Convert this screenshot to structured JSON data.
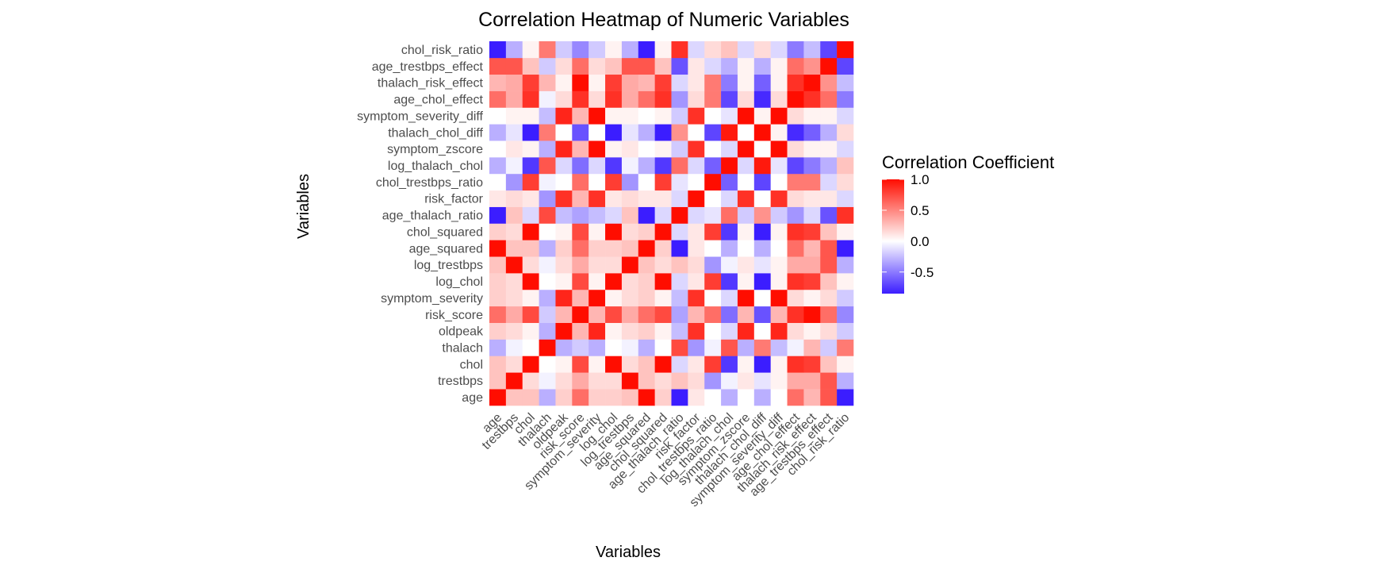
{
  "chart_data": {
    "type": "heatmap",
    "title": "Correlation Heatmap of Numeric Variables",
    "xlabel": "Variables",
    "ylabel": "Variables",
    "variables": [
      "age",
      "trestbps",
      "chol",
      "thalach",
      "oldpeak",
      "risk_score",
      "symptom_severity",
      "log_chol",
      "log_trestbps",
      "age_squared",
      "chol_squared",
      "age_thalach_ratio",
      "risk_factor",
      "chol_trestbps_ratio",
      "log_thalach_chol",
      "symptom_zscore",
      "thalach_chol_diff",
      "symptom_severity_diff",
      "age_chol_effect",
      "thalach_risk_effect",
      "age_trestbps_effect",
      "chol_risk_ratio"
    ],
    "x_categories": [
      "age",
      "trestbps",
      "chol",
      "thalach",
      "oldpeak",
      "risk_score",
      "symptom_severity",
      "log_chol",
      "log_trestbps",
      "age_squared",
      "chol_squared",
      "age_thalach_ratio",
      "risk_factor",
      "chol_trestbps_ratio",
      "log_thalach_chol",
      "symptom_zscore",
      "thalach_chol_diff",
      "symptom_severity_diff",
      "age_chol_effect",
      "thalach_risk_effect",
      "age_trestbps_effect",
      "chol_risk_ratio"
    ],
    "y_categories_bottom_to_top": [
      "age",
      "trestbps",
      "chol",
      "thalach",
      "oldpeak",
      "risk_score",
      "symptom_severity",
      "log_chol",
      "log_trestbps",
      "age_squared",
      "chol_squared",
      "age_thalach_ratio",
      "risk_factor",
      "chol_trestbps_ratio",
      "log_thalach_chol",
      "symptom_zscore",
      "thalach_chol_diff",
      "symptom_severity_diff",
      "age_chol_effect",
      "thalach_risk_effect",
      "age_trestbps_effect",
      "chol_risk_ratio"
    ],
    "values": [
      [
        1.0,
        0.25,
        0.25,
        -0.3,
        0.2,
        0.6,
        0.2,
        0.2,
        0.25,
        1.0,
        0.2,
        -0.85,
        0.1,
        0.0,
        -0.3,
        0.0,
        -0.3,
        0.0,
        0.6,
        0.3,
        0.7,
        -0.85
      ],
      [
        0.25,
        1.0,
        0.15,
        -0.05,
        0.15,
        0.35,
        0.15,
        0.15,
        1.0,
        0.25,
        0.15,
        0.25,
        0.15,
        -0.4,
        -0.05,
        0.1,
        -0.1,
        0.05,
        0.35,
        0.35,
        0.7,
        -0.3
      ],
      [
        0.25,
        0.15,
        1.0,
        0.0,
        0.05,
        0.75,
        0.05,
        1.0,
        0.15,
        0.25,
        1.0,
        -0.15,
        0.1,
        0.8,
        -0.75,
        0.05,
        -0.85,
        0.05,
        0.85,
        0.8,
        0.25,
        0.05
      ],
      [
        -0.3,
        -0.05,
        0.0,
        1.0,
        -0.3,
        -0.2,
        -0.3,
        0.0,
        -0.05,
        -0.3,
        0.0,
        0.75,
        -0.4,
        -0.05,
        0.7,
        -0.3,
        0.55,
        -0.25,
        -0.05,
        0.3,
        -0.2,
        0.55
      ],
      [
        0.2,
        0.15,
        0.05,
        -0.3,
        1.0,
        0.3,
        0.9,
        0.05,
        0.15,
        0.2,
        0.05,
        -0.25,
        0.85,
        0.0,
        -0.15,
        0.9,
        0.0,
        0.9,
        0.15,
        0.05,
        0.15,
        -0.2
      ],
      [
        0.6,
        0.35,
        0.75,
        -0.2,
        0.3,
        1.0,
        0.3,
        0.75,
        0.35,
        0.6,
        0.75,
        -0.35,
        0.3,
        0.6,
        -0.55,
        0.3,
        -0.65,
        0.3,
        0.85,
        1.0,
        0.6,
        -0.45
      ],
      [
        0.2,
        0.15,
        0.05,
        -0.3,
        0.9,
        0.3,
        1.0,
        0.05,
        0.15,
        0.2,
        0.05,
        -0.25,
        0.85,
        0.0,
        -0.15,
        1.0,
        0.0,
        1.0,
        0.15,
        0.05,
        0.15,
        -0.2
      ],
      [
        0.2,
        0.15,
        1.0,
        0.0,
        0.05,
        0.75,
        0.05,
        1.0,
        0.15,
        0.2,
        1.0,
        -0.15,
        0.1,
        0.8,
        -0.75,
        0.05,
        -0.85,
        0.05,
        0.85,
        0.8,
        0.25,
        0.05
      ],
      [
        0.25,
        1.0,
        0.15,
        -0.05,
        0.15,
        0.35,
        0.15,
        0.15,
        1.0,
        0.25,
        0.15,
        0.25,
        0.15,
        -0.4,
        -0.05,
        0.1,
        -0.1,
        0.05,
        0.35,
        0.35,
        0.7,
        -0.3
      ],
      [
        1.0,
        0.25,
        0.25,
        -0.3,
        0.2,
        0.6,
        0.2,
        0.2,
        0.25,
        1.0,
        0.2,
        -0.85,
        0.1,
        0.0,
        -0.3,
        0.0,
        -0.3,
        0.0,
        0.6,
        0.3,
        0.7,
        -0.85
      ],
      [
        0.2,
        0.15,
        1.0,
        0.0,
        0.05,
        0.75,
        0.05,
        1.0,
        0.15,
        0.2,
        1.0,
        -0.15,
        0.1,
        0.8,
        -0.75,
        0.05,
        -0.85,
        0.05,
        0.85,
        0.8,
        0.25,
        0.05
      ],
      [
        -0.85,
        0.25,
        -0.15,
        0.75,
        -0.25,
        -0.35,
        -0.25,
        -0.15,
        0.25,
        -0.85,
        -0.15,
        1.0,
        -0.15,
        -0.1,
        0.6,
        -0.2,
        0.45,
        -0.2,
        -0.4,
        -0.15,
        -0.65,
        0.85
      ],
      [
        0.1,
        0.15,
        0.1,
        -0.4,
        0.85,
        0.3,
        0.85,
        0.1,
        0.15,
        0.1,
        0.1,
        -0.15,
        1.0,
        0.0,
        -0.15,
        0.85,
        0.0,
        0.85,
        0.15,
        0.1,
        0.1,
        -0.15
      ],
      [
        0.0,
        -0.4,
        0.8,
        -0.05,
        0.0,
        0.6,
        0.0,
        0.8,
        -0.4,
        0.0,
        0.8,
        -0.1,
        0.0,
        1.0,
        -0.6,
        0.0,
        -0.7,
        0.0,
        0.55,
        0.55,
        -0.15,
        0.15
      ],
      [
        -0.3,
        -0.05,
        -0.75,
        0.7,
        -0.15,
        -0.55,
        -0.15,
        -0.75,
        -0.05,
        -0.3,
        -0.75,
        0.6,
        -0.15,
        -0.6,
        1.0,
        -0.15,
        0.95,
        -0.1,
        -0.7,
        -0.5,
        -0.3,
        0.25
      ],
      [
        0.0,
        0.1,
        0.05,
        -0.3,
        0.9,
        0.3,
        1.0,
        0.05,
        0.1,
        0.0,
        0.05,
        -0.2,
        0.85,
        0.0,
        -0.15,
        1.0,
        0.0,
        1.0,
        0.15,
        0.05,
        0.05,
        -0.15
      ],
      [
        -0.3,
        -0.1,
        -0.85,
        0.55,
        0.0,
        -0.65,
        0.0,
        -0.85,
        -0.1,
        -0.3,
        -0.85,
        0.45,
        0.0,
        -0.7,
        0.95,
        0.0,
        1.0,
        0.05,
        -0.8,
        -0.6,
        -0.3,
        0.15
      ],
      [
        0.0,
        0.05,
        0.05,
        -0.25,
        0.9,
        0.3,
        1.0,
        0.05,
        0.05,
        0.0,
        0.05,
        -0.2,
        0.85,
        0.0,
        -0.1,
        1.0,
        0.05,
        1.0,
        0.15,
        0.05,
        0.05,
        -0.15
      ],
      [
        0.6,
        0.35,
        0.85,
        -0.05,
        0.15,
        0.85,
        0.15,
        0.85,
        0.35,
        0.6,
        0.85,
        -0.4,
        0.15,
        0.55,
        -0.7,
        0.15,
        -0.8,
        0.15,
        1.0,
        0.85,
        0.6,
        -0.5
      ],
      [
        0.3,
        0.35,
        0.8,
        0.3,
        0.05,
        1.0,
        0.05,
        0.8,
        0.35,
        0.3,
        0.8,
        -0.15,
        0.1,
        0.55,
        -0.5,
        0.05,
        -0.6,
        0.05,
        0.85,
        1.0,
        0.45,
        -0.25
      ],
      [
        0.7,
        0.7,
        0.25,
        -0.2,
        0.15,
        0.6,
        0.15,
        0.25,
        0.7,
        0.7,
        0.25,
        -0.65,
        0.1,
        -0.15,
        -0.3,
        0.05,
        -0.3,
        0.05,
        0.6,
        0.45,
        1.0,
        -0.7
      ],
      [
        -0.85,
        -0.3,
        0.05,
        0.55,
        -0.2,
        -0.45,
        -0.2,
        0.05,
        -0.3,
        -0.85,
        0.05,
        0.85,
        -0.15,
        0.15,
        0.25,
        -0.15,
        0.15,
        -0.15,
        -0.5,
        -0.25,
        -0.7,
        1.0
      ]
    ],
    "legend": {
      "title": "Correlation Coefficient",
      "position": "right",
      "ticks": [
        1.0,
        0.5,
        0.0,
        -0.5
      ],
      "tick_labels": [
        "1.0",
        "0.5",
        "0.0",
        "-0.5"
      ],
      "range": [
        -0.85,
        1.0
      ]
    },
    "color_scale": {
      "low": "#3b1dff",
      "mid": "#ffffff",
      "high": "#ff0d00"
    },
    "grid": false
  }
}
